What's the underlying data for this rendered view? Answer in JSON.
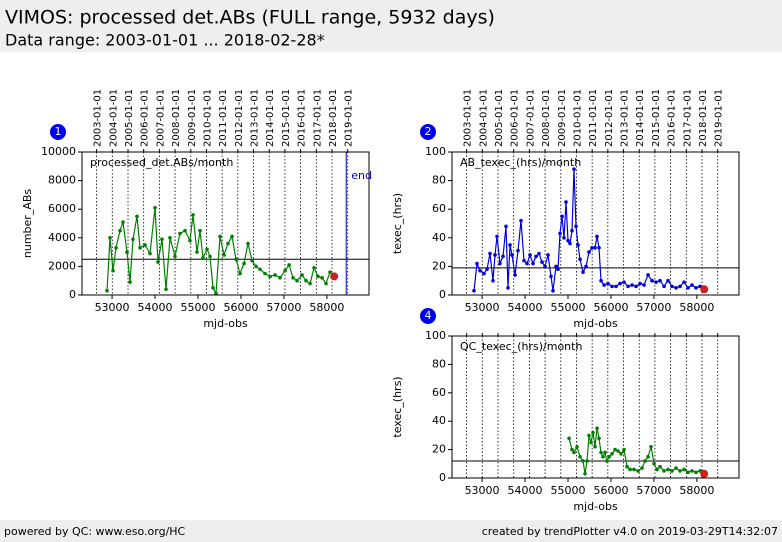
{
  "header": {
    "title": "VIMOS: processed det.ABs (FULL range, 5932 days)",
    "subtitle": "Data range: 2003-01-01 ... 2018-02-28*"
  },
  "footer": {
    "left": "powered by QC: www.eso.org/HC",
    "right": "created by trendPlotter v4.0 on 2019-03-29T14:32:07"
  },
  "chart_data": [
    {
      "type": "line",
      "badge": "1",
      "annotation": "processed_det.ABs/month",
      "xlabel": "mjd-obs",
      "ylabel": "number_ABs",
      "color": "#008000",
      "last_point_color": "#cc2222",
      "xlim": [
        52300,
        58980
      ],
      "xticks": [
        53000,
        54000,
        55000,
        56000,
        57000,
        58000
      ],
      "ylim": [
        0,
        10000
      ],
      "yticks": [
        0,
        2000,
        4000,
        6000,
        8000,
        10000
      ],
      "top_ticks": [
        {
          "value": 52640,
          "label": "2003-01-01"
        },
        {
          "value": 53005,
          "label": "2004-01-01"
        },
        {
          "value": 53371,
          "label": "2005-01-01"
        },
        {
          "value": 53736,
          "label": "2006-01-01"
        },
        {
          "value": 54101,
          "label": "2007-01-01"
        },
        {
          "value": 54466,
          "label": "2008-01-01"
        },
        {
          "value": 54832,
          "label": "2009-01-01"
        },
        {
          "value": 55197,
          "label": "2010-01-01"
        },
        {
          "value": 55562,
          "label": "2011-01-01"
        },
        {
          "value": 55927,
          "label": "2012-01-01"
        },
        {
          "value": 56293,
          "label": "2013-01-01"
        },
        {
          "value": 56658,
          "label": "2014-01-01"
        },
        {
          "value": 57023,
          "label": "2015-01-01"
        },
        {
          "value": 57388,
          "label": "2016-01-01"
        },
        {
          "value": 57754,
          "label": "2017-01-01"
        },
        {
          "value": 58119,
          "label": "2018-01-01"
        },
        {
          "value": 58484,
          "label": "2019-01-01"
        }
      ],
      "reference_line": 2500,
      "end_line": 58450,
      "end_label": "end",
      "end_color": "#0000cc",
      "x": [
        52882,
        52952,
        53022,
        53092,
        53185,
        53254,
        53347,
        53417,
        53487,
        53580,
        53650,
        53767,
        53883,
        53999,
        54069,
        54162,
        54255,
        54348,
        54464,
        54581,
        54697,
        54814,
        54884,
        54977,
        55047,
        55117,
        55210,
        55280,
        55350,
        55420,
        55513,
        55606,
        55699,
        55792,
        55885,
        55978,
        56071,
        56164,
        56258,
        56351,
        56444,
        56560,
        56677,
        56793,
        56909,
        57026,
        57119,
        57212,
        57305,
        57421,
        57514,
        57608,
        57701,
        57794,
        57887,
        57980,
        58073,
        58170
      ],
      "values": [
        300,
        4000,
        1700,
        3300,
        4500,
        5100,
        3000,
        900,
        3900,
        5500,
        3300,
        3500,
        2900,
        6100,
        2300,
        3900,
        400,
        4000,
        2700,
        4300,
        4500,
        3800,
        5600,
        3000,
        4500,
        2600,
        3200,
        2700,
        500,
        100,
        4100,
        2800,
        3600,
        4100,
        2500,
        1500,
        2200,
        3600,
        2400,
        2000,
        1800,
        1500,
        1300,
        1400,
        1200,
        1700,
        2100,
        1200,
        1000,
        1400,
        1000,
        800,
        1900,
        1300,
        1200,
        800,
        1600,
        1300
      ]
    },
    {
      "type": "line",
      "badge": "2",
      "annotation": "AB_texec_(hrs)/month",
      "xlabel": "mjd-obs",
      "ylabel": "texec_(hrs)",
      "color": "#0000dd",
      "last_point_color": "#cc2222",
      "xlim": [
        52300,
        58980
      ],
      "xticks": [
        53000,
        54000,
        55000,
        56000,
        57000,
        58000
      ],
      "ylim": [
        0,
        100
      ],
      "yticks": [
        0,
        20,
        40,
        60,
        80,
        100
      ],
      "top_ticks": [
        {
          "value": 52640,
          "label": "2003-01-01"
        },
        {
          "value": 53005,
          "label": "2004-01-01"
        },
        {
          "value": 53371,
          "label": "2005-01-01"
        },
        {
          "value": 53736,
          "label": "2006-01-01"
        },
        {
          "value": 54101,
          "label": "2007-01-01"
        },
        {
          "value": 54466,
          "label": "2008-01-01"
        },
        {
          "value": 54832,
          "label": "2009-01-01"
        },
        {
          "value": 55197,
          "label": "2010-01-01"
        },
        {
          "value": 55562,
          "label": "2011-01-01"
        },
        {
          "value": 55927,
          "label": "2012-01-01"
        },
        {
          "value": 56293,
          "label": "2013-01-01"
        },
        {
          "value": 56658,
          "label": "2014-01-01"
        },
        {
          "value": 57023,
          "label": "2015-01-01"
        },
        {
          "value": 57388,
          "label": "2016-01-01"
        },
        {
          "value": 57754,
          "label": "2017-01-01"
        },
        {
          "value": 58119,
          "label": "2018-01-01"
        },
        {
          "value": 58484,
          "label": "2019-01-01"
        }
      ],
      "reference_line": 19,
      "x": [
        52812,
        52882,
        52952,
        53045,
        53115,
        53185,
        53254,
        53301,
        53348,
        53417,
        53487,
        53557,
        53604,
        53650,
        53697,
        53767,
        53836,
        53906,
        53976,
        54046,
        54116,
        54186,
        54256,
        54325,
        54395,
        54465,
        54535,
        54605,
        54651,
        54721,
        54768,
        54814,
        54861,
        54907,
        54954,
        55001,
        55047,
        55094,
        55140,
        55187,
        55233,
        55280,
        55350,
        55420,
        55489,
        55559,
        55629,
        55676,
        55722,
        55769,
        55839,
        55932,
        56025,
        56118,
        56211,
        56304,
        56397,
        56490,
        56584,
        56677,
        56770,
        56863,
        56956,
        57049,
        57142,
        57235,
        57328,
        57422,
        57515,
        57608,
        57701,
        57794,
        57887,
        57980,
        58073,
        58170
      ],
      "values": [
        3,
        22,
        17,
        15,
        18,
        29,
        10,
        28,
        41,
        22,
        27,
        48,
        5,
        35,
        28,
        14,
        31,
        52,
        24,
        22,
        28,
        22,
        27,
        29,
        23,
        20,
        28,
        13,
        3,
        20,
        18,
        43,
        55,
        40,
        65,
        38,
        36,
        45,
        88,
        48,
        35,
        25,
        16,
        20,
        30,
        33,
        33,
        41,
        33,
        10,
        7,
        8,
        6,
        6,
        8,
        9,
        6,
        7,
        6,
        8,
        7,
        14,
        10,
        9,
        10,
        6,
        10,
        6,
        5,
        6,
        9,
        5,
        7,
        5,
        6,
        4
      ]
    },
    {
      "type": "line",
      "badge": "4",
      "annotation": "QC_texec_(hrs)/month",
      "xlabel": "mjd-obs",
      "ylabel": "texec_(hrs)",
      "color": "#008000",
      "last_point_color": "#cc2222",
      "xlim": [
        52300,
        58980
      ],
      "xticks": [
        53000,
        54000,
        55000,
        56000,
        57000,
        58000
      ],
      "ylim": [
        0,
        100
      ],
      "yticks": [
        0,
        20,
        40,
        60,
        80,
        100
      ],
      "top_ticks": [
        {
          "value": 52640,
          "label": "2003-01-01"
        },
        {
          "value": 53005,
          "label": "2004-01-01"
        },
        {
          "value": 53371,
          "label": "2005-01-01"
        },
        {
          "value": 53736,
          "label": "2006-01-01"
        },
        {
          "value": 54101,
          "label": "2007-01-01"
        },
        {
          "value": 54466,
          "label": "2008-01-01"
        },
        {
          "value": 54832,
          "label": "2009-01-01"
        },
        {
          "value": 55197,
          "label": "2010-01-01"
        },
        {
          "value": 55562,
          "label": "2011-01-01"
        },
        {
          "value": 55927,
          "label": "2012-01-01"
        },
        {
          "value": 56293,
          "label": "2013-01-01"
        },
        {
          "value": 56658,
          "label": "2014-01-01"
        },
        {
          "value": 57023,
          "label": "2015-01-01"
        },
        {
          "value": 57388,
          "label": "2016-01-01"
        },
        {
          "value": 57754,
          "label": "2017-01-01"
        },
        {
          "value": 58119,
          "label": "2018-01-01"
        },
        {
          "value": 58484,
          "label": "2019-01-01"
        }
      ],
      "show_top_labels": false,
      "reference_line": 12,
      "x": [
        55024,
        55094,
        55140,
        55210,
        55280,
        55350,
        55396,
        55443,
        55489,
        55536,
        55582,
        55629,
        55676,
        55722,
        55769,
        55815,
        55862,
        55908,
        55955,
        56025,
        56095,
        56164,
        56234,
        56304,
        56374,
        56444,
        56537,
        56630,
        56723,
        56793,
        56863,
        56933,
        57003,
        57072,
        57142,
        57235,
        57328,
        57422,
        57515,
        57608,
        57701,
        57794,
        57887,
        57980,
        58073,
        58170
      ],
      "values": [
        28,
        20,
        18,
        22,
        15,
        12,
        3,
        12,
        30,
        25,
        32,
        22,
        35,
        28,
        18,
        15,
        18,
        12,
        15,
        17,
        20,
        19,
        17,
        20,
        8,
        6,
        6,
        5,
        7,
        12,
        15,
        22,
        10,
        6,
        8,
        5,
        6,
        5,
        7,
        5,
        6,
        4,
        5,
        4,
        5,
        3
      ]
    }
  ]
}
